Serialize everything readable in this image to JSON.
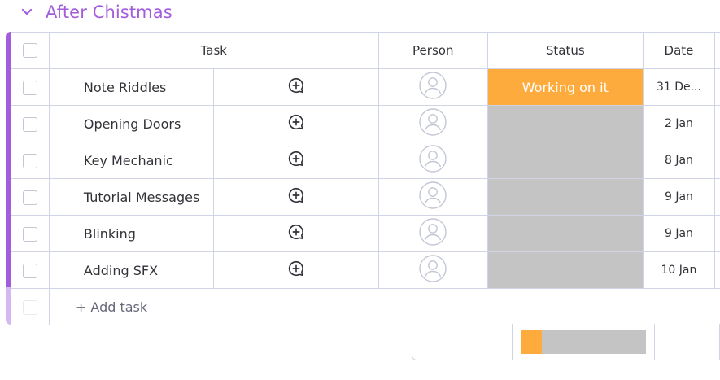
{
  "group": {
    "title": "After Chistmas",
    "accent_color": "#a25ddc"
  },
  "columns": {
    "task": "Task",
    "person": "Person",
    "status": "Status",
    "date": "Date"
  },
  "rows": [
    {
      "name": "Note Riddles",
      "status": "Working on it",
      "status_color": "#fdab3d",
      "date": "31 De..."
    },
    {
      "name": "Opening Doors",
      "status": "",
      "status_color": "#c4c4c4",
      "date": "2 Jan"
    },
    {
      "name": "Key Mechanic",
      "status": "",
      "status_color": "#c4c4c4",
      "date": "8 Jan"
    },
    {
      "name": "Tutorial Messages",
      "status": "",
      "status_color": "#c4c4c4",
      "date": "9 Jan"
    },
    {
      "name": "Blinking",
      "status": "",
      "status_color": "#c4c4c4",
      "date": "9 Jan"
    },
    {
      "name": "Adding SFX",
      "status": "",
      "status_color": "#c4c4c4",
      "date": "10 Jan"
    }
  ],
  "add_task": "+ Add task",
  "status_summary": [
    {
      "label": "Working on it",
      "fraction": 0.167,
      "color": "#fdab3d"
    },
    {
      "label": "",
      "fraction": 0.833,
      "color": "#c4c4c4"
    }
  ]
}
